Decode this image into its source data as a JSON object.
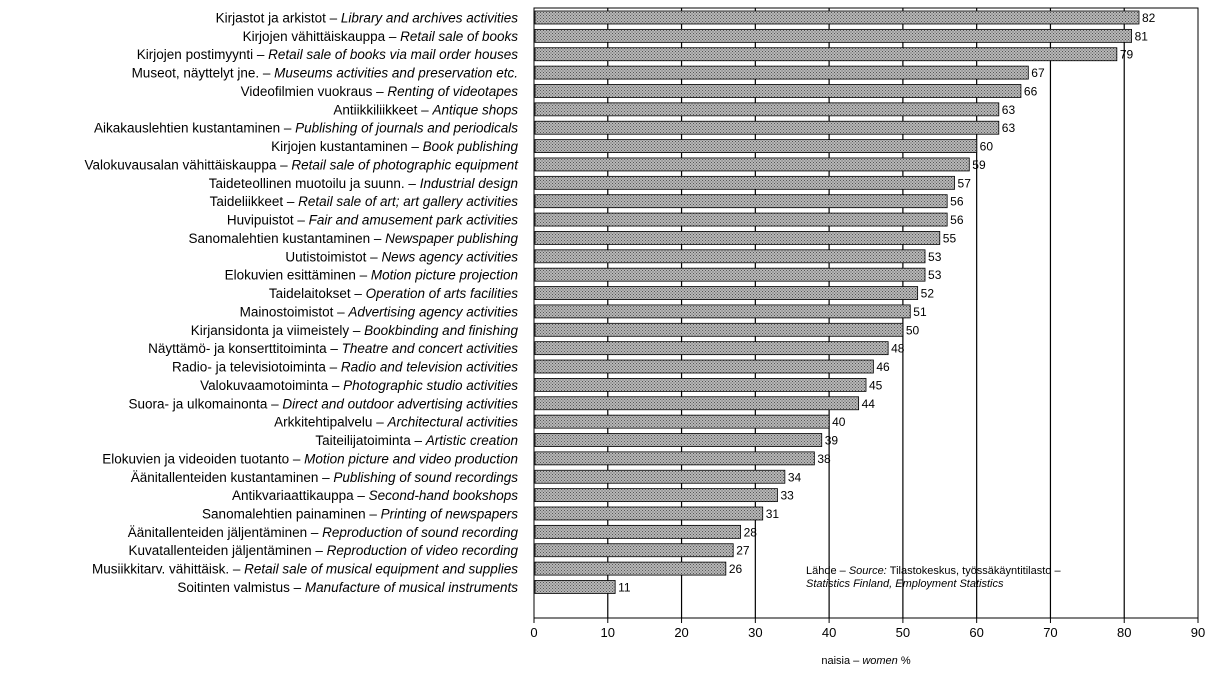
{
  "chart_data": {
    "type": "bar",
    "orientation": "horizontal",
    "title": "",
    "xlabel": {
      "fi": "naisia",
      "sep": " – ",
      "en": "women",
      "unit": " %"
    },
    "xlim": [
      0,
      90
    ],
    "xticks": [
      "0",
      "10",
      "20",
      "30",
      "40",
      "50",
      "60",
      "70",
      "80",
      "90"
    ],
    "grid": true,
    "categories": [
      {
        "fi": "Kirjastot ja arkistot – ",
        "en": "Library and archives activities"
      },
      {
        "fi": "Kirjojen vähittäiskauppa – ",
        "en": "Retail sale of books"
      },
      {
        "fi": "Kirjojen postimyynti – ",
        "en": "Retail sale of books via mail order houses"
      },
      {
        "fi": "Museot, näyttelyt jne. – ",
        "en": "Museums activities and preservation etc."
      },
      {
        "fi": "Videofilmien vuokraus – ",
        "en": "Renting of videotapes"
      },
      {
        "fi": "Antiikkiliikkeet – ",
        "en": "Antique shops"
      },
      {
        "fi": "Aikakauslehtien kustantaminen – ",
        "en": "Publishing of journals and periodicals"
      },
      {
        "fi": "Kirjojen kustantaminen – ",
        "en": "Book publishing"
      },
      {
        "fi": "Valokuvausalan vähittäiskauppa – ",
        "en": "Retail sale of photographic equipment"
      },
      {
        "fi": "Taideteollinen muotoilu ja suunn. – ",
        "en": "Industrial design"
      },
      {
        "fi": "Taideliikkeet – ",
        "en": "Retail sale of art; art gallery activities"
      },
      {
        "fi": "Huvipuistot – ",
        "en": "Fair and amusement park activities"
      },
      {
        "fi": "Sanomalehtien kustantaminen – ",
        "en": "Newspaper publishing"
      },
      {
        "fi": "Uutistoimistot – ",
        "en": "News agency activities"
      },
      {
        "fi": "Elokuvien esittäminen – ",
        "en": "Motion picture projection"
      },
      {
        "fi": "Taidelaitokset – ",
        "en": "Operation of arts facilities"
      },
      {
        "fi": "Mainostoimistot – ",
        "en": "Advertising agency activities"
      },
      {
        "fi": "Kirjansidonta ja viimeistely – ",
        "en": "Bookbinding and finishing"
      },
      {
        "fi": "Näyttämö- ja konserttitoiminta – ",
        "en": "Theatre and concert activities"
      },
      {
        "fi": "Radio- ja televisiotoiminta – ",
        "en": "Radio and television activities"
      },
      {
        "fi": "Valokuvaamotoiminta – ",
        "en": "Photographic studio activities"
      },
      {
        "fi": "Suora- ja ulkomainonta – ",
        "en": "Direct and outdoor advertising activities"
      },
      {
        "fi": "Arkkitehtipalvelu – ",
        "en": "Architectural activities"
      },
      {
        "fi": "Taiteilijatoiminta – ",
        "en": "Artistic creation"
      },
      {
        "fi": "Elokuvien ja videoiden tuotanto – ",
        "en": "Motion picture and video production"
      },
      {
        "fi": "Äänitallenteiden kustantaminen – ",
        "en": "Publishing of sound recordings"
      },
      {
        "fi": "Antikvariaattikauppa – ",
        "en": "Second-hand bookshops"
      },
      {
        "fi": "Sanomalehtien painaminen – ",
        "en": "Printing of newspapers"
      },
      {
        "fi": "Äänitallenteiden jäljentäminen – ",
        "en": "Reproduction of sound recording"
      },
      {
        "fi": "Kuvatallenteiden jäljentäminen – ",
        "en": "Reproduction of video recording"
      },
      {
        "fi": "Musiikkitarv. vähittäisk. – ",
        "en": "Retail sale of musical equipment and supplies"
      },
      {
        "fi": "Soitinten valmistus – ",
        "en": "Manufacture of musical instruments"
      }
    ],
    "values": [
      82,
      81,
      79,
      67,
      66,
      63,
      63,
      60,
      59,
      57,
      56,
      56,
      55,
      53,
      53,
      52,
      51,
      50,
      48,
      46,
      45,
      44,
      40,
      39,
      38,
      34,
      33,
      31,
      28,
      27,
      26,
      11
    ],
    "annotation": {
      "line1_fi": "Lähde – ",
      "line1_en": "Source: ",
      "line1_rest": "Tilastokeskus, työssäkäyntitilasto –",
      "line2": "Statistics Finland, Employment Statistics"
    },
    "colors": {
      "bar_fill": "#9a9a9a",
      "bar_stroke": "#000000",
      "grid": "#000000"
    }
  }
}
